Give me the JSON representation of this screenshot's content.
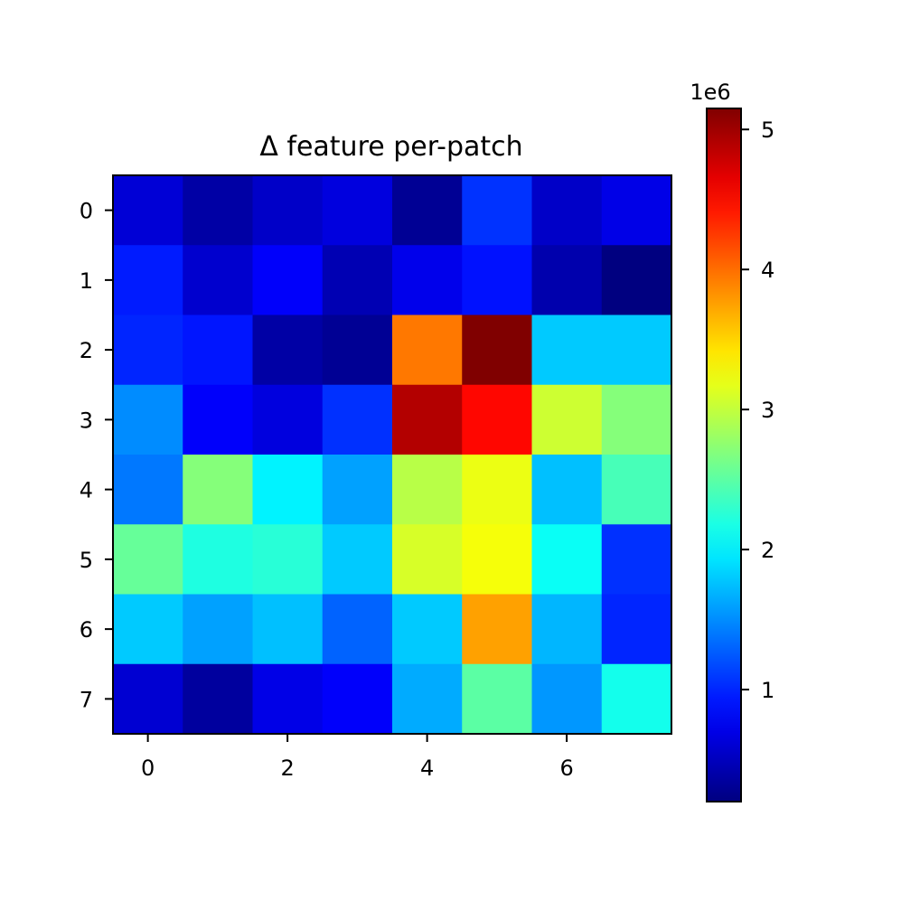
{
  "chart_data": {
    "type": "heatmap",
    "title": "Δ feature per-patch",
    "xlabel": "",
    "ylabel": "",
    "x_ticks": [
      "0",
      "2",
      "4",
      "6"
    ],
    "y_ticks": [
      "0",
      "1",
      "2",
      "3",
      "4",
      "5",
      "6",
      "7"
    ],
    "colormap": "jet",
    "vmin": 0.2,
    "vmax": 5.15,
    "colorbar": {
      "ticks": [
        "1",
        "2",
        "3",
        "4",
        "5"
      ],
      "multiplier": "1e6",
      "position": "right"
    },
    "values": [
      [
        0.62,
        0.38,
        0.55,
        0.66,
        0.3,
        1.06,
        0.55,
        0.7
      ],
      [
        0.95,
        0.58,
        0.8,
        0.45,
        0.72,
        0.9,
        0.42,
        0.2
      ],
      [
        1.0,
        0.92,
        0.38,
        0.3,
        3.95,
        5.15,
        1.8,
        1.8
      ],
      [
        1.5,
        0.8,
        0.66,
        1.05,
        4.9,
        4.5,
        3.05,
        2.7
      ],
      [
        1.4,
        2.7,
        2.0,
        1.6,
        2.95,
        3.2,
        1.75,
        2.4
      ],
      [
        2.55,
        2.2,
        2.25,
        1.8,
        3.1,
        3.25,
        2.1,
        1.05
      ],
      [
        1.8,
        1.6,
        1.75,
        1.3,
        1.8,
        3.75,
        1.7,
        1.0
      ],
      [
        0.6,
        0.35,
        0.7,
        0.8,
        1.65,
        2.5,
        1.55,
        2.15
      ]
    ],
    "grid": false
  }
}
